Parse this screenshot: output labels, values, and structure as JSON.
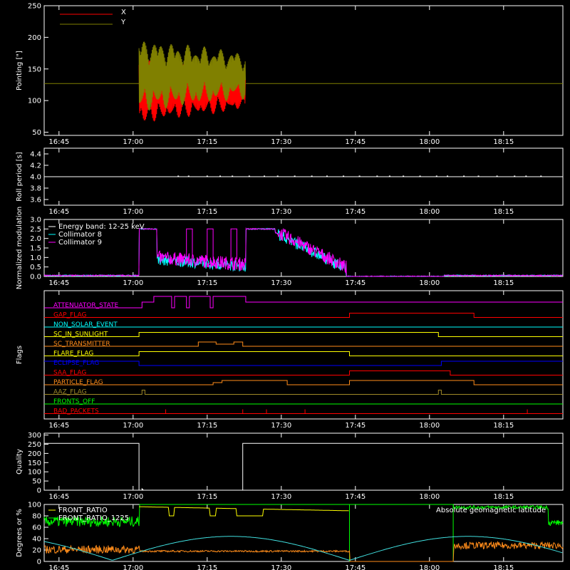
{
  "colors": {
    "background": "#000000",
    "axis": "#ffffff",
    "red": "#ff0000",
    "olive": "#808000",
    "cyan": "#00ffff",
    "magenta": "#ff00ff",
    "yellow": "#ffff00",
    "orange": "#ff8c1a",
    "blue": "#0000ff",
    "green": "#00ff00",
    "brown": "#a08a28",
    "light_cyan": "#40e0e0"
  },
  "time_axis": {
    "start_min": 16.7,
    "end_min": 18.45,
    "ticks": [
      "16:45",
      "17:00",
      "17:15",
      "17:30",
      "17:45",
      "18:00",
      "18:15"
    ],
    "tick_values": [
      16.75,
      17.0,
      17.25,
      17.5,
      17.75,
      18.0,
      18.25
    ]
  },
  "chart_data": [
    {
      "type": "line",
      "id": "pointing",
      "ylabel": "Pointing [\"]",
      "ylim": [
        45,
        250
      ],
      "yticks": [
        "50",
        "100",
        "150",
        "200",
        "250"
      ],
      "ytick_values": [
        50,
        100,
        150,
        200,
        250
      ],
      "legend": [
        "X",
        "Y"
      ],
      "series": [
        {
          "name": "X",
          "color": "red",
          "start": 17.02,
          "end": 17.38,
          "center": 115,
          "amp": 45,
          "settle": 125
        },
        {
          "name": "Y",
          "color": "olive",
          "start": 17.02,
          "end": 17.38,
          "center": 150,
          "amp": 50,
          "settle": 127
        }
      ]
    },
    {
      "type": "line",
      "id": "roll",
      "ylabel": "Roll period [s]",
      "ylim": [
        3.5,
        4.5
      ],
      "yticks": [
        "3.6",
        "3.8",
        "4.0",
        "4.2",
        "4.4"
      ],
      "ytick_values": [
        3.6,
        3.8,
        4.0,
        4.2,
        4.4
      ],
      "value": 4.0
    },
    {
      "type": "line",
      "id": "modulation",
      "ylabel": "Normalized modulation",
      "ylim": [
        0,
        3.0
      ],
      "yticks": [
        "0.0",
        "0.5",
        "1.0",
        "1.5",
        "2.0",
        "2.5",
        "3.0"
      ],
      "ytick_values": [
        0,
        0.5,
        1.0,
        1.5,
        2.0,
        2.5,
        3.0
      ],
      "legend": [
        "Energy band: 12-25 keV",
        "Collimator 8",
        "Collimator 9"
      ]
    },
    {
      "type": "line",
      "id": "flags",
      "ylabel": "Flags",
      "flags": [
        {
          "name": "ATTENUATOR_STATE",
          "color": "magenta"
        },
        {
          "name": "GAP_FLAG",
          "color": "red"
        },
        {
          "name": "NON_SOLAR_EVENT",
          "color": "cyan"
        },
        {
          "name": "SC_IN_SUNLIGHT",
          "color": "yellow"
        },
        {
          "name": "SC_TRANSMITTER",
          "color": "orange"
        },
        {
          "name": "FLARE_FLAG",
          "color": "yellow"
        },
        {
          "name": "ECLIPSE_FLAG",
          "color": "blue"
        },
        {
          "name": "SAA_FLAG",
          "color": "red"
        },
        {
          "name": "PARTICLE_FLAG",
          "color": "orange"
        },
        {
          "name": "AAZ_FLAG",
          "color": "brown"
        },
        {
          "name": "FRONTS_OFF",
          "color": "green"
        },
        {
          "name": "BAD_PACKETS",
          "color": "red"
        }
      ]
    },
    {
      "type": "line",
      "id": "quality",
      "ylabel": "Quality",
      "ylim": [
        0,
        310
      ],
      "yticks": [
        "0",
        "50",
        "100",
        "150",
        "200",
        "250",
        "300"
      ],
      "ytick_values": [
        0,
        50,
        100,
        150,
        200,
        250,
        300
      ]
    },
    {
      "type": "line",
      "id": "front",
      "ylabel": "Degrees or %",
      "ylim": [
        0,
        100
      ],
      "yticks": [
        "0",
        "20",
        "40",
        "60",
        "80",
        "100"
      ],
      "ytick_values": [
        0,
        20,
        40,
        60,
        80,
        100
      ],
      "legend": [
        "FRONT_RATIO",
        "FRONT_RATIO_1225"
      ],
      "annotation": "Absolute geomagnetic latitude"
    }
  ]
}
